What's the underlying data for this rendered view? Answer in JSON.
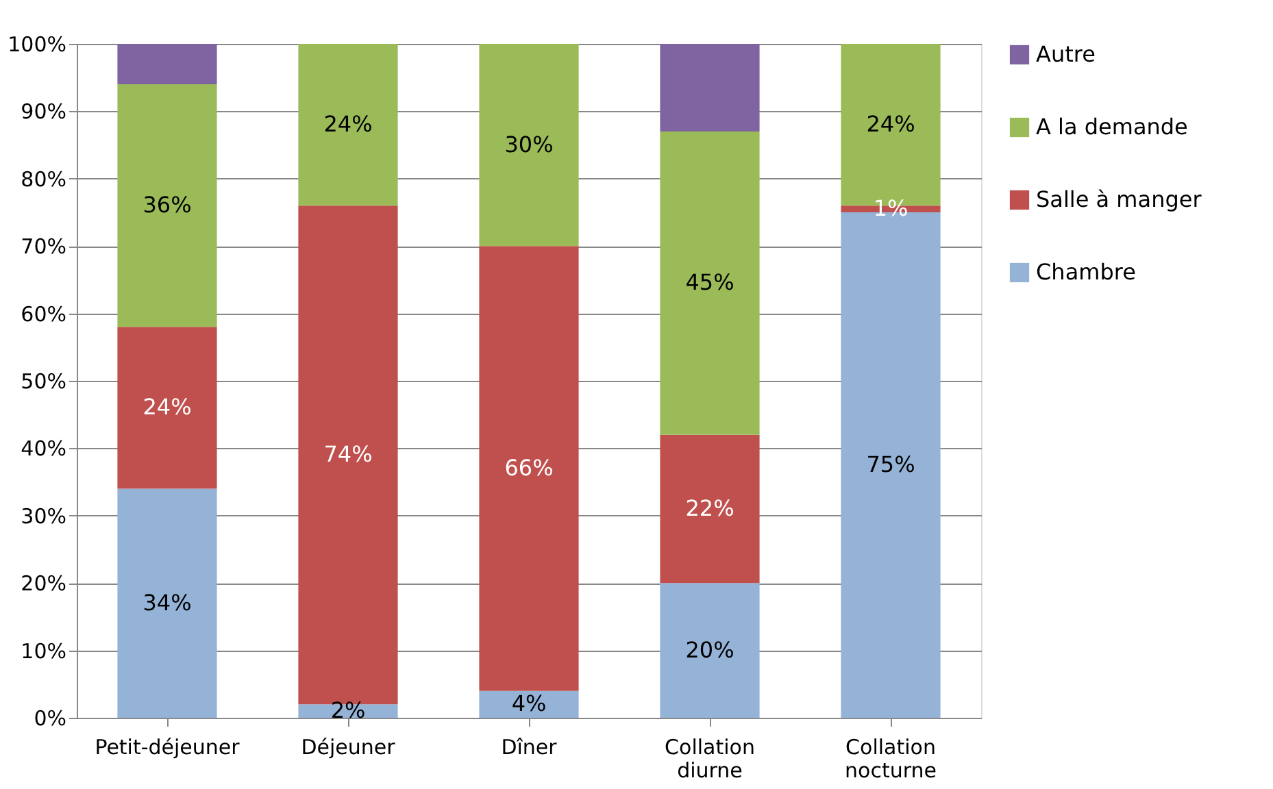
{
  "chart_data": {
    "type": "bar",
    "stacked": true,
    "categories": [
      "Petit-déjeuner",
      "Déjeuner",
      "Dîner",
      "Collation diurne",
      "Collation nocturne"
    ],
    "series": [
      {
        "name": "Chambre",
        "color": "#95b3d7",
        "values": [
          34,
          2,
          4,
          20,
          75
        ],
        "value_labels": [
          "34%",
          "2%",
          "4%",
          "20%",
          "75%"
        ]
      },
      {
        "name": "Salle à manger",
        "color": "#c0504d",
        "values": [
          24,
          74,
          66,
          22,
          1
        ],
        "value_labels": [
          "24%",
          "74%",
          "66%",
          "22%",
          "1%"
        ]
      },
      {
        "name": "A la demande",
        "color": "#9bbb59",
        "values": [
          36,
          24,
          30,
          45,
          24
        ],
        "value_labels": [
          "36%",
          "24%",
          "30%",
          "45%",
          "24%"
        ]
      },
      {
        "name": "Autre",
        "color": "#8064a2",
        "values": [
          6,
          0,
          0,
          13,
          0
        ],
        "value_labels": [
          null,
          null,
          null,
          null,
          null
        ]
      }
    ],
    "ylim": [
      0,
      100
    ],
    "yticks": [
      {
        "value": 0,
        "label": "0%"
      },
      {
        "value": 10,
        "label": "10%"
      },
      {
        "value": 20,
        "label": "20%"
      },
      {
        "value": 30,
        "label": "30%"
      },
      {
        "value": 40,
        "label": "40%"
      },
      {
        "value": 50,
        "label": "50%"
      },
      {
        "value": 60,
        "label": "60%"
      },
      {
        "value": 70,
        "label": "70%"
      },
      {
        "value": 80,
        "label": "80%"
      },
      {
        "value": 90,
        "label": "90%"
      },
      {
        "value": 100,
        "label": "100%"
      }
    ],
    "grid": "y",
    "legend": "right"
  }
}
